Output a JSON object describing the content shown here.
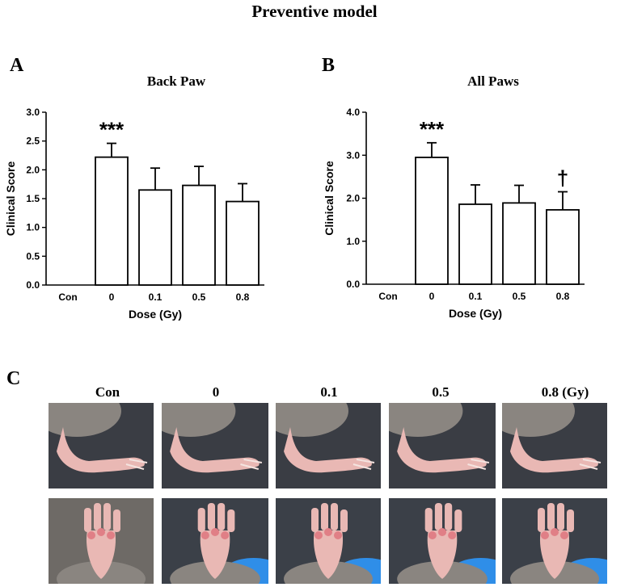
{
  "title": "Preventive model",
  "colors": {
    "bar_fill": "#ffffff",
    "bar_stroke": "#000000",
    "photo_bg": "#3a3d44",
    "fur": "#8a8580",
    "paw_skin": "#e9b8b4",
    "paw_pad": "#e07f86",
    "glove": "#2f8ee8"
  },
  "panel_a": {
    "label": "A"
  },
  "panel_b": {
    "label": "B"
  },
  "panel_c": {
    "label": "C",
    "columns": [
      "Con",
      "0",
      "0.1",
      "0.5",
      "0.8 (Gy)"
    ],
    "rows": [
      "side-view",
      "plantar-view"
    ]
  },
  "chart_data": [
    {
      "type": "bar",
      "title": "Back Paw",
      "xlabel": "Dose (Gy)",
      "ylabel": "Clinical Score",
      "categories": [
        "Con",
        "0",
        "0.1",
        "0.5",
        "0.8"
      ],
      "values": [
        0,
        2.22,
        1.65,
        1.73,
        1.45
      ],
      "errors": [
        0,
        0.24,
        0.38,
        0.33,
        0.31
      ],
      "annotations": [
        "",
        "***",
        "",
        "",
        ""
      ],
      "ylim": [
        0,
        3.0
      ],
      "yticks": [
        "0.0",
        "0.5",
        "1.0",
        "1.5",
        "2.0",
        "2.5",
        "3.0"
      ]
    },
    {
      "type": "bar",
      "title": "All Paws",
      "xlabel": "Dose (Gy)",
      "ylabel": "Clinical Score",
      "categories": [
        "Con",
        "0",
        "0.1",
        "0.5",
        "0.8"
      ],
      "values": [
        0,
        2.95,
        1.86,
        1.89,
        1.73
      ],
      "errors": [
        0,
        0.34,
        0.45,
        0.41,
        0.42
      ],
      "annotations": [
        "",
        "***",
        "",
        "",
        "†"
      ],
      "ylim": [
        0,
        4.0
      ],
      "yticks": [
        "0.0",
        "1.0",
        "2.0",
        "3.0",
        "4.0"
      ]
    }
  ]
}
